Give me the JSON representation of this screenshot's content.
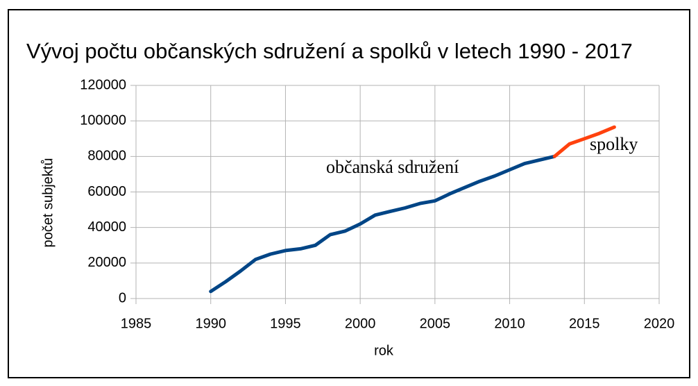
{
  "chart_data": {
    "type": "line",
    "title": "Vývoj počtu občanských sdružení a spolků v letech 1990 - 2017",
    "x_label": "rok",
    "y_label": "počet subjektů",
    "xlim": [
      1985,
      2020
    ],
    "xticks": [
      1985,
      1990,
      1995,
      2000,
      2005,
      2010,
      2015,
      2020
    ],
    "ylim": [
      0,
      120000
    ],
    "yticks": [
      0,
      20000,
      40000,
      60000,
      80000,
      100000,
      120000
    ],
    "grid": true,
    "series": [
      {
        "name": "občanská sdružení",
        "color": "#004586",
        "x": [
          1990,
          1991,
          1992,
          1993,
          1994,
          1995,
          1996,
          1997,
          1998,
          1999,
          2000,
          2001,
          2002,
          2003,
          2004,
          2005,
          2006,
          2007,
          2008,
          2009,
          2010,
          2011,
          2012,
          2013
        ],
        "values": [
          4000,
          9500,
          15500,
          22000,
          25000,
          27000,
          28000,
          30000,
          36000,
          38000,
          42000,
          47000,
          49000,
          51000,
          53500,
          55000,
          59000,
          62500,
          66000,
          69000,
          72500,
          76000,
          78000,
          80000
        ]
      },
      {
        "name": "spolky",
        "color": "#ff420e",
        "x": [
          2013,
          2014,
          2015,
          2016,
          2017
        ],
        "values": [
          80000,
          87000,
          90000,
          93000,
          96500
        ]
      }
    ]
  }
}
